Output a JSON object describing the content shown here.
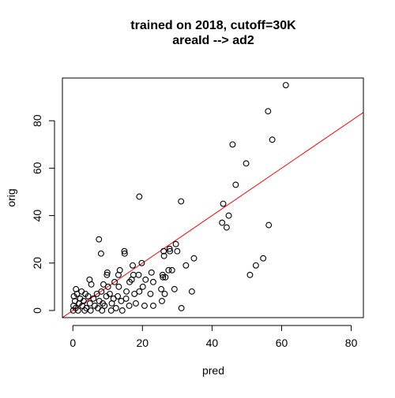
{
  "chart_data": {
    "type": "scatter",
    "title": "trained on 2018, cutoff=30K",
    "subtitle": "areaId --> ad2",
    "xlabel": "pred",
    "ylabel": "orig",
    "xlim": [
      -3,
      83.5
    ],
    "ylim": [
      -3,
      98
    ],
    "xticks": [
      "0",
      "20",
      "40",
      "60",
      "80"
    ],
    "yticks": [
      "0",
      "20",
      "40",
      "60",
      "80"
    ],
    "grid": false,
    "legend": "none",
    "point_color": "#000000",
    "line_color": "#ff0000",
    "reference_line": {
      "intercept": 0,
      "slope": 1
    },
    "points": [
      {
        "x": 61.2,
        "y": 95
      },
      {
        "x": 56.1,
        "y": 84
      },
      {
        "x": 57.3,
        "y": 72
      },
      {
        "x": 45.9,
        "y": 70
      },
      {
        "x": 49.8,
        "y": 62
      },
      {
        "x": 46.8,
        "y": 53
      },
      {
        "x": 19.1,
        "y": 48
      },
      {
        "x": 31.1,
        "y": 46
      },
      {
        "x": 43.2,
        "y": 45
      },
      {
        "x": 44.8,
        "y": 40
      },
      {
        "x": 42.9,
        "y": 37
      },
      {
        "x": 56.3,
        "y": 36
      },
      {
        "x": 44.2,
        "y": 35
      },
      {
        "x": 7.5,
        "y": 30
      },
      {
        "x": 29.6,
        "y": 28
      },
      {
        "x": 27.8,
        "y": 26
      },
      {
        "x": 14.8,
        "y": 25
      },
      {
        "x": 26.1,
        "y": 25
      },
      {
        "x": 27.9,
        "y": 25
      },
      {
        "x": 30.0,
        "y": 25
      },
      {
        "x": 14.9,
        "y": 24
      },
      {
        "x": 8.1,
        "y": 24
      },
      {
        "x": 26.2,
        "y": 23
      },
      {
        "x": 34.8,
        "y": 22
      },
      {
        "x": 54.7,
        "y": 22
      },
      {
        "x": 19.8,
        "y": 20
      },
      {
        "x": 17.2,
        "y": 19
      },
      {
        "x": 32.5,
        "y": 19
      },
      {
        "x": 52.6,
        "y": 19
      },
      {
        "x": 27.5,
        "y": 17
      },
      {
        "x": 28.5,
        "y": 17
      },
      {
        "x": 13.5,
        "y": 17
      },
      {
        "x": 9.9,
        "y": 16
      },
      {
        "x": 22.6,
        "y": 16
      },
      {
        "x": 13.1,
        "y": 15
      },
      {
        "x": 9.8,
        "y": 15
      },
      {
        "x": 17.4,
        "y": 15
      },
      {
        "x": 18.9,
        "y": 15
      },
      {
        "x": 25.8,
        "y": 15
      },
      {
        "x": 50.9,
        "y": 15
      },
      {
        "x": 25.9,
        "y": 14
      },
      {
        "x": 26.6,
        "y": 14
      },
      {
        "x": 4.8,
        "y": 13
      },
      {
        "x": 16.9,
        "y": 13
      },
      {
        "x": 20.9,
        "y": 13
      },
      {
        "x": 23.1,
        "y": 12
      },
      {
        "x": 12.0,
        "y": 12
      },
      {
        "x": 16.3,
        "y": 12
      },
      {
        "x": 5.3,
        "y": 11
      },
      {
        "x": 8.8,
        "y": 11
      },
      {
        "x": 10.1,
        "y": 10
      },
      {
        "x": 20.1,
        "y": 10
      },
      {
        "x": 13.2,
        "y": 10
      },
      {
        "x": 0.9,
        "y": 9
      },
      {
        "x": 25.4,
        "y": 9
      },
      {
        "x": 29.2,
        "y": 9
      },
      {
        "x": 2.5,
        "y": 8
      },
      {
        "x": 8.2,
        "y": 8
      },
      {
        "x": 15.4,
        "y": 8
      },
      {
        "x": 19.1,
        "y": 8
      },
      {
        "x": 34.2,
        "y": 8
      },
      {
        "x": 1.2,
        "y": 7
      },
      {
        "x": 3.6,
        "y": 7
      },
      {
        "x": 6.9,
        "y": 7
      },
      {
        "x": 10.6,
        "y": 7
      },
      {
        "x": 17.7,
        "y": 7
      },
      {
        "x": 22.3,
        "y": 7
      },
      {
        "x": 26.4,
        "y": 7
      },
      {
        "x": 0.3,
        "y": 6
      },
      {
        "x": 4.4,
        "y": 6
      },
      {
        "x": 9.6,
        "y": 6
      },
      {
        "x": 12.9,
        "y": 6
      },
      {
        "x": 2.1,
        "y": 5
      },
      {
        "x": 5.9,
        "y": 5
      },
      {
        "x": 11.7,
        "y": 5
      },
      {
        "x": 15.3,
        "y": 5
      },
      {
        "x": 0.6,
        "y": 4
      },
      {
        "x": 3.1,
        "y": 4
      },
      {
        "x": 7.6,
        "y": 4
      },
      {
        "x": 13.9,
        "y": 4
      },
      {
        "x": 25.6,
        "y": 4
      },
      {
        "x": 1.8,
        "y": 3
      },
      {
        "x": 4.9,
        "y": 3
      },
      {
        "x": 8.6,
        "y": 3
      },
      {
        "x": 11.2,
        "y": 3
      },
      {
        "x": 18.1,
        "y": 3
      },
      {
        "x": 0.2,
        "y": 2
      },
      {
        "x": 2.7,
        "y": 2
      },
      {
        "x": 6.3,
        "y": 2
      },
      {
        "x": 9.1,
        "y": 2
      },
      {
        "x": 16.2,
        "y": 2
      },
      {
        "x": 20.6,
        "y": 2
      },
      {
        "x": 23.1,
        "y": 2
      },
      {
        "x": 0.8,
        "y": 1
      },
      {
        "x": 3.9,
        "y": 1
      },
      {
        "x": 7.2,
        "y": 1
      },
      {
        "x": 12.4,
        "y": 1
      },
      {
        "x": 31.2,
        "y": 1
      },
      {
        "x": 0.1,
        "y": 0
      },
      {
        "x": 1.5,
        "y": 0
      },
      {
        "x": 3.4,
        "y": 0
      },
      {
        "x": 5.1,
        "y": 0
      },
      {
        "x": 8.4,
        "y": 0
      },
      {
        "x": 11.0,
        "y": 0
      },
      {
        "x": 14.2,
        "y": 0
      }
    ]
  }
}
